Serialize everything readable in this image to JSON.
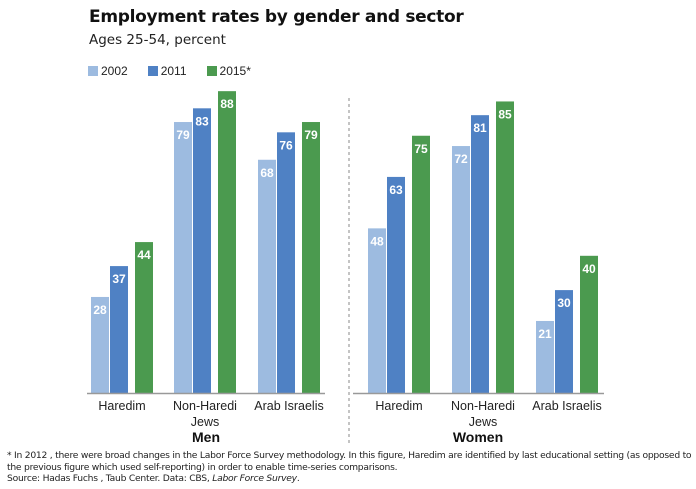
{
  "chart_data": {
    "type": "bar",
    "title": "Employment rates by gender and sector",
    "subtitle": "Ages 25-54, percent",
    "legend": [
      "2002",
      "2011",
      "2015*"
    ],
    "legend_placement": "top-left",
    "colors": [
      "#9dbbe0",
      "#4f81c4",
      "#4b9a4f"
    ],
    "panels": [
      {
        "name": "Men",
        "categories": [
          "Haredim",
          "Non-Haredi Jews",
          "Arab Israelis"
        ],
        "series": [
          {
            "name": "2002",
            "values": [
              28,
              79,
              68
            ]
          },
          {
            "name": "2011",
            "values": [
              37,
              83,
              76
            ]
          },
          {
            "name": "2015*",
            "values": [
              44,
              88,
              79
            ]
          }
        ]
      },
      {
        "name": "Women",
        "categories": [
          "Haredim",
          "Non-Haredi Jews",
          "Arab Israelis"
        ],
        "series": [
          {
            "name": "2002",
            "values": [
              48,
              72,
              21
            ]
          },
          {
            "name": "2011",
            "values": [
              63,
              81,
              30
            ]
          },
          {
            "name": "2015*",
            "values": [
              75,
              85,
              40
            ]
          }
        ]
      }
    ],
    "ylim": [
      0,
      100
    ],
    "grid": false
  },
  "footnote": "* In 2012 , there were broad changes in the Labor Force Survey methodology. In this figure, Haredim are identified by last educational setting (as opposed to the previous figure which used self-reporting) in order to enable time-series comparisons.",
  "source_prefix": "Source: Hadas Fuchs , Taub Center. Data: CBS, ",
  "source_italic": "Labor Force Survey",
  "source_suffix": "."
}
